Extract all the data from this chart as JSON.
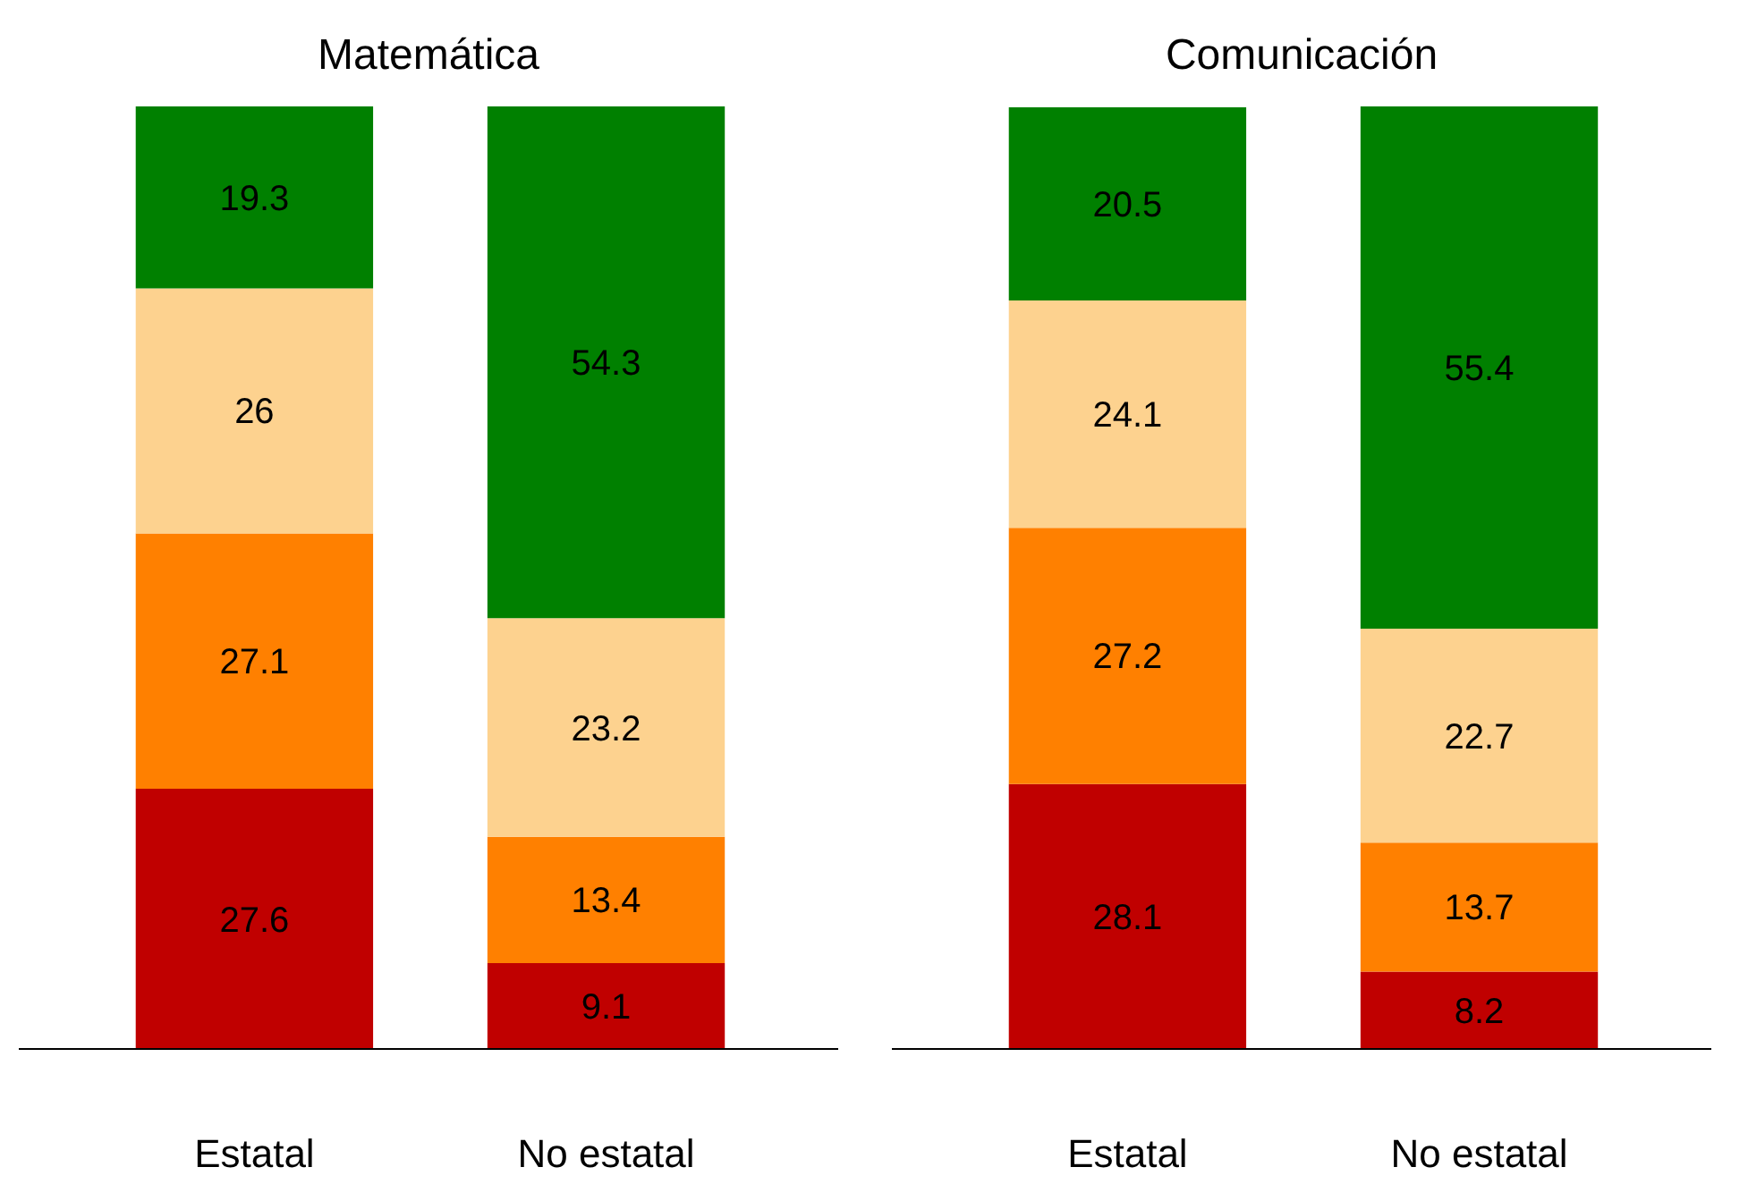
{
  "chart_data": [
    {
      "type": "bar",
      "title": "Matemática",
      "categories": [
        "Estatal",
        "No estatal"
      ],
      "stacked": true,
      "data_labels": true,
      "grid": false,
      "series": [
        {
          "color": "#c00000",
          "values": [
            27.6,
            9.1
          ]
        },
        {
          "color": "#ff8000",
          "values": [
            27.1,
            13.4
          ]
        },
        {
          "color": "#fdd28f",
          "values": [
            26,
            23.2
          ]
        },
        {
          "color": "#008000",
          "values": [
            19.3,
            54.3
          ]
        }
      ]
    },
    {
      "type": "bar",
      "title": "Comunicación",
      "categories": [
        "Estatal",
        "No estatal"
      ],
      "stacked": true,
      "data_labels": true,
      "grid": false,
      "series": [
        {
          "color": "#c00000",
          "values": [
            28.1,
            8.2
          ]
        },
        {
          "color": "#ff8000",
          "values": [
            27.2,
            13.7
          ]
        },
        {
          "color": "#fdd28f",
          "values": [
            24.1,
            22.7
          ]
        },
        {
          "color": "#008000",
          "values": [
            20.5,
            55.4
          ]
        }
      ]
    }
  ]
}
